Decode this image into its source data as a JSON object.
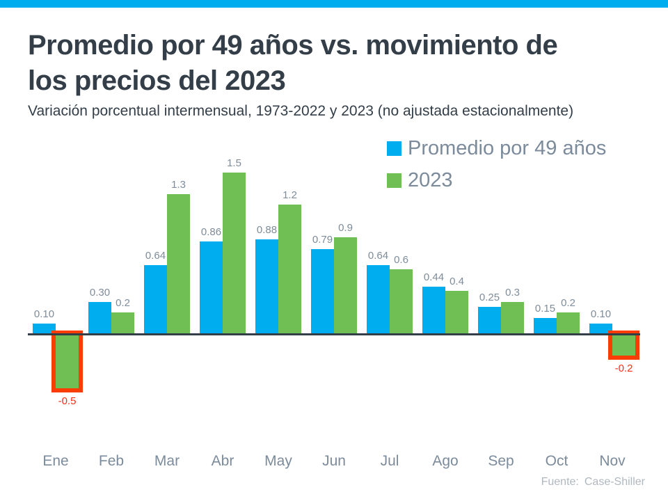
{
  "page": {
    "title_line1": "Promedio por 49 años vs. movimiento de",
    "title_line2": "los precios del 2023",
    "subtitle": "Variación porcentual intermensual, 1973-2022 y 2023 (no ajustada estacionalmente)",
    "source_label": "Fuente:",
    "source_value": "Case-Shiller",
    "accent_bar_color": "#00AEEF",
    "title_color": "#333E48"
  },
  "legend": {
    "position": "top-right",
    "items": [
      {
        "key": "promedio-49-anos",
        "label": "Promedio por 49 años",
        "color": "#00AEEF"
      },
      {
        "key": "2023",
        "label": "2023",
        "color": "#6FBF54"
      }
    ]
  },
  "chart_data": {
    "type": "bar",
    "title": "Promedio por 49 años vs. movimiento de los precios del 2023",
    "subtitle": "Variación porcentual intermensual, 1973-2022 y 2023 (no ajustada estacionalmente)",
    "categories": [
      "Ene",
      "Feb",
      "Mar",
      "Abr",
      "May",
      "Jun",
      "Jul",
      "Ago",
      "Sep",
      "Oct",
      "Nov"
    ],
    "series": [
      {
        "key": "promedio-49-anos",
        "name": "Promedio por 49 años",
        "color": "#00AEEF",
        "values": [
          0.1,
          0.3,
          0.64,
          0.86,
          0.88,
          0.79,
          0.64,
          0.44,
          0.25,
          0.15,
          0.1
        ],
        "labels": [
          "0.10",
          "0.30",
          "0.64",
          "0.86",
          "0.88",
          "0.79",
          "0.64",
          "0.44",
          "0.25",
          "0.15",
          "0.10"
        ]
      },
      {
        "key": "2023",
        "name": "2023",
        "color": "#6FBF54",
        "values": [
          -0.5,
          0.2,
          1.3,
          1.5,
          1.2,
          0.9,
          0.6,
          0.4,
          0.3,
          0.2,
          -0.2
        ],
        "labels": [
          "-0.5",
          "0.2",
          "1.3",
          "1.5",
          "1.2",
          "0.9",
          "0.6",
          "0.4",
          "0.3",
          "0.2",
          "-0.2"
        ]
      }
    ],
    "ylim": [
      -0.6,
      1.6
    ],
    "grid": false,
    "y_axis_labels_visible": false,
    "axis_color": "#333F48",
    "value_label_color": "#7E8C99",
    "negative_label_color": "#FF2D14",
    "month_label_color": "#7C8B9B",
    "legend_position": "top-right",
    "xlabel": "",
    "ylabel": "",
    "highlight": {
      "style": "box",
      "color": "#FA3C05",
      "series": "2023",
      "category_indices": [
        0,
        10
      ],
      "highlighted_values": [
        -0.5,
        -0.2
      ]
    }
  }
}
